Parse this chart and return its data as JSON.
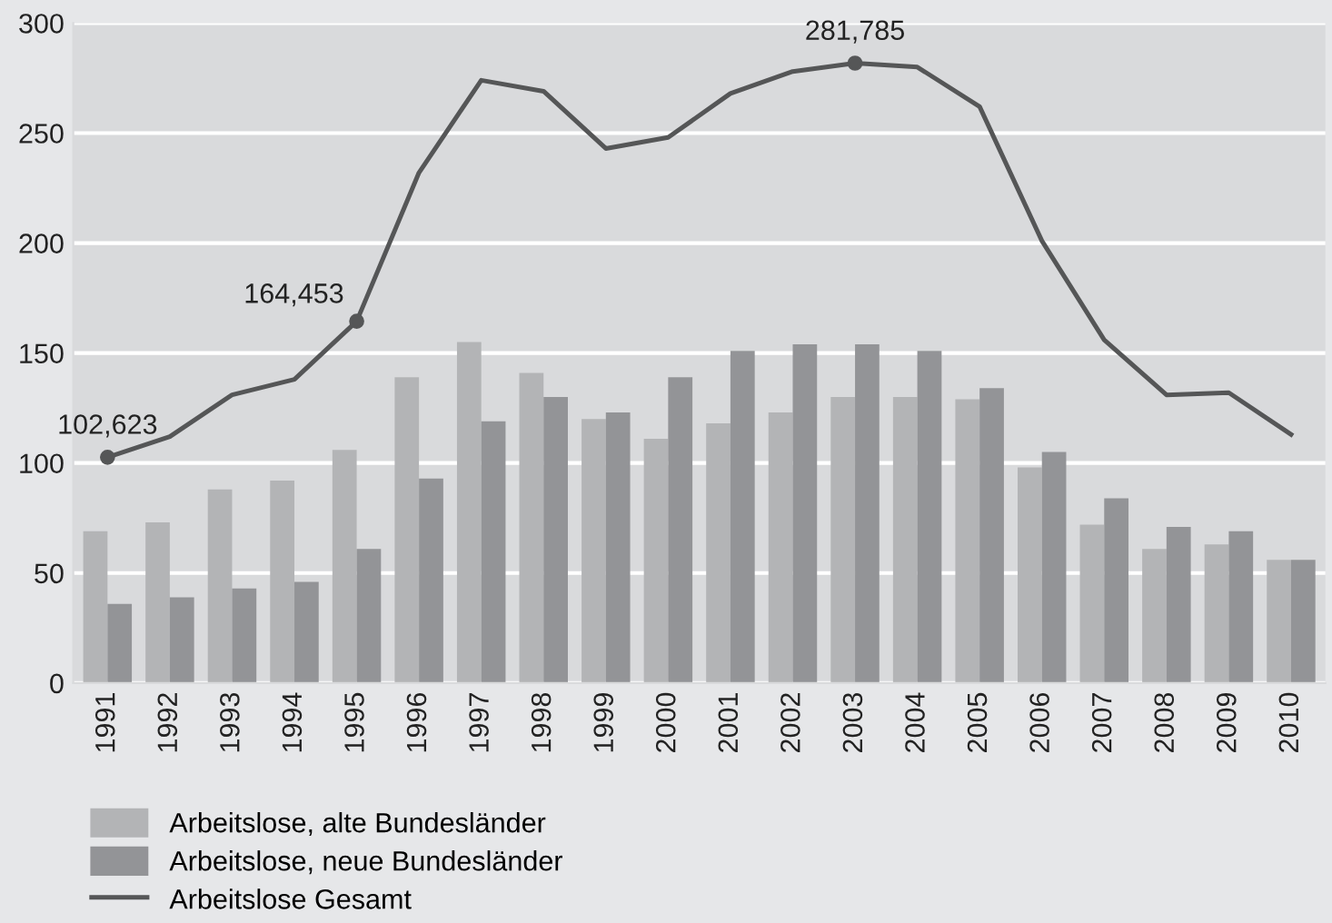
{
  "chart_data": {
    "type": "bar",
    "categories": [
      "1991",
      "1992",
      "1993",
      "1994",
      "1995",
      "1996",
      "1997",
      "1998",
      "1999",
      "2000",
      "2001",
      "2002",
      "2003",
      "2004",
      "2005",
      "2006",
      "2007",
      "2008",
      "2009",
      "2010"
    ],
    "series": [
      {
        "name": "Arbeitslose, alte Bundesländer",
        "color": "#b3b4b6",
        "values": [
          69,
          73,
          88,
          92,
          106,
          139,
          155,
          141,
          120,
          111,
          118,
          123,
          130,
          130,
          129,
          98,
          72,
          61,
          63,
          56
        ]
      },
      {
        "name": "Arbeitslose, neue Bundesländer",
        "color": "#939497",
        "values": [
          36,
          39,
          43,
          46,
          61,
          93,
          119,
          130,
          123,
          139,
          151,
          154,
          154,
          151,
          134,
          105,
          84,
          71,
          69,
          56
        ]
      },
      {
        "name": "Arbeitslose Gesamt",
        "type": "line",
        "color": "#555657",
        "values": [
          102.623,
          112,
          131,
          138,
          164.453,
          232,
          274,
          269,
          243,
          248,
          268,
          278,
          281.785,
          280,
          262,
          201,
          156,
          131,
          132,
          113
        ]
      }
    ],
    "ylim": [
      0,
      300
    ],
    "yticks": [
      0,
      50,
      100,
      150,
      200,
      250,
      300
    ],
    "grid": "y",
    "legend": "bottom",
    "marker": "none",
    "line_style": "solid",
    "annotations": [
      {
        "text": "102,623",
        "x": "1991",
        "y": 102.623
      },
      {
        "text": "164,453",
        "x": "1995",
        "y": 164.453
      },
      {
        "text": "281,785",
        "x": "2003",
        "y": 281.785
      }
    ]
  }
}
